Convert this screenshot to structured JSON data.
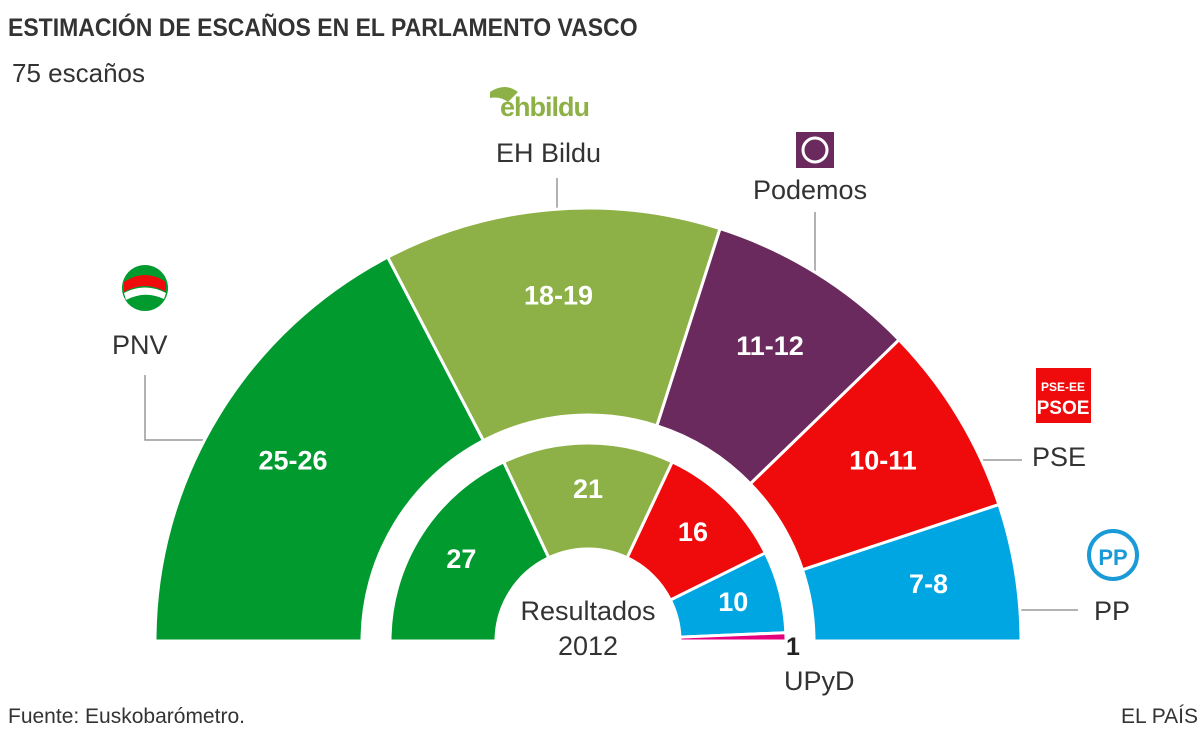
{
  "header": {
    "title": "ESTIMACIÓN DE ESCAÑOS EN EL PARLAMENTO VASCO",
    "subtitle": "75 escaños"
  },
  "footer": {
    "source": "Fuente: Euskobarómetro.",
    "brand": "EL PAÍS"
  },
  "logos": {
    "bildu": "ehbildu",
    "pse_line1": "PSE-EE",
    "pse_line2": "PSOE",
    "pp": "PP"
  },
  "chart_data": {
    "type": "parliament-semicircle",
    "title": "ESTIMACIÓN DE ESCAÑOS EN EL PARLAMENTO VASCO",
    "total_seats": 75,
    "center_label": [
      "Resultados",
      "2012"
    ],
    "estimate": [
      {
        "party": "PNV",
        "label": "25-26",
        "low": 25,
        "high": 26,
        "color": "#009a2e"
      },
      {
        "party": "EH Bildu",
        "label": "18-19",
        "low": 18,
        "high": 19,
        "color": "#8db146"
      },
      {
        "party": "Podemos",
        "label": "11-12",
        "low": 11,
        "high": 12,
        "color": "#6a2a5e"
      },
      {
        "party": "PSE",
        "label": "10-11",
        "low": 10,
        "high": 11,
        "color": "#ef0b0b"
      },
      {
        "party": "PP",
        "label": "7-8",
        "low": 7,
        "high": 8,
        "color": "#00a6e2"
      }
    ],
    "results_2012": [
      {
        "party": "PNV",
        "seats": 27,
        "label": "27",
        "color": "#009a2e"
      },
      {
        "party": "EH Bildu",
        "seats": 21,
        "label": "21",
        "color": "#8db146"
      },
      {
        "party": "PSE",
        "seats": 16,
        "label": "16",
        "color": "#ef0b0b"
      },
      {
        "party": "PP",
        "seats": 10,
        "label": "10",
        "color": "#00a6e2"
      },
      {
        "party": "UPyD",
        "seats": 1,
        "label": "1",
        "color": "#e5007d"
      }
    ]
  }
}
